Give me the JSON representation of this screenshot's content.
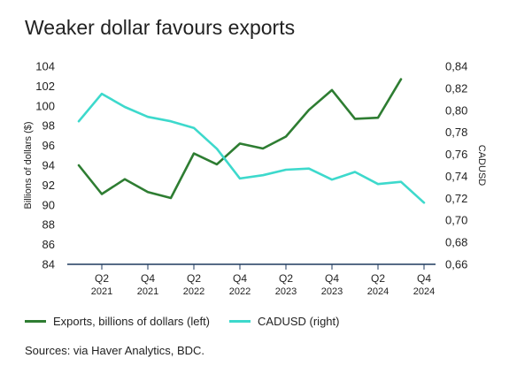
{
  "chart_data": {
    "type": "line",
    "title": "Weaker dollar favours exports",
    "ylabel": "Billions of dollars ($)",
    "y2label": "CADUSD",
    "ylim": [
      84,
      104
    ],
    "yticks": [
      "84",
      "86",
      "88",
      "90",
      "92",
      "94",
      "96",
      "98",
      "100",
      "102",
      "104"
    ],
    "y2lim": [
      0.66,
      0.84
    ],
    "y2ticks": [
      "0,66",
      "0,68",
      "0,70",
      "0,72",
      "0,74",
      "0,76",
      "0,78",
      "0,80",
      "0,82",
      "0,84"
    ],
    "x": [
      "2021 Q1",
      "2021 Q2",
      "2021 Q3",
      "2021 Q4",
      "2022 Q1",
      "2022 Q2",
      "2022 Q3",
      "2022 Q4",
      "2023 Q1",
      "2023 Q2",
      "2023 Q3",
      "2023 Q4",
      "2024 Q1",
      "2024 Q2",
      "2024 Q3",
      "2024 Q4"
    ],
    "xticks": [
      {
        "quarter": "Q2",
        "year": "2021"
      },
      {
        "quarter": "Q4",
        "year": "2021"
      },
      {
        "quarter": "Q2",
        "year": "2022"
      },
      {
        "quarter": "Q4",
        "year": "2022"
      },
      {
        "quarter": "Q2",
        "year": "2023"
      },
      {
        "quarter": "Q4",
        "year": "2023"
      },
      {
        "quarter": "Q2",
        "year": "2024"
      },
      {
        "quarter": "Q4",
        "year": "2024"
      }
    ],
    "series": [
      {
        "name": "Exports, billions of dollars (left)",
        "axis": "left",
        "color": "#2e7d32",
        "values": [
          94.0,
          91.1,
          92.6,
          91.3,
          90.7,
          95.2,
          94.1,
          96.2,
          95.7,
          96.9,
          99.6,
          101.6,
          98.7,
          98.8,
          102.7,
          null
        ]
      },
      {
        "name": "CADUSD (right)",
        "axis": "right",
        "color": "#3dd9cc",
        "values": [
          0.79,
          0.815,
          0.803,
          0.794,
          0.79,
          0.784,
          0.765,
          0.738,
          0.741,
          0.746,
          0.747,
          0.737,
          0.744,
          0.733,
          0.735,
          0.716
        ]
      }
    ],
    "legend_position": "bottom-left",
    "grid": false
  },
  "sources": "Sources: via Haver Analytics, BDC."
}
